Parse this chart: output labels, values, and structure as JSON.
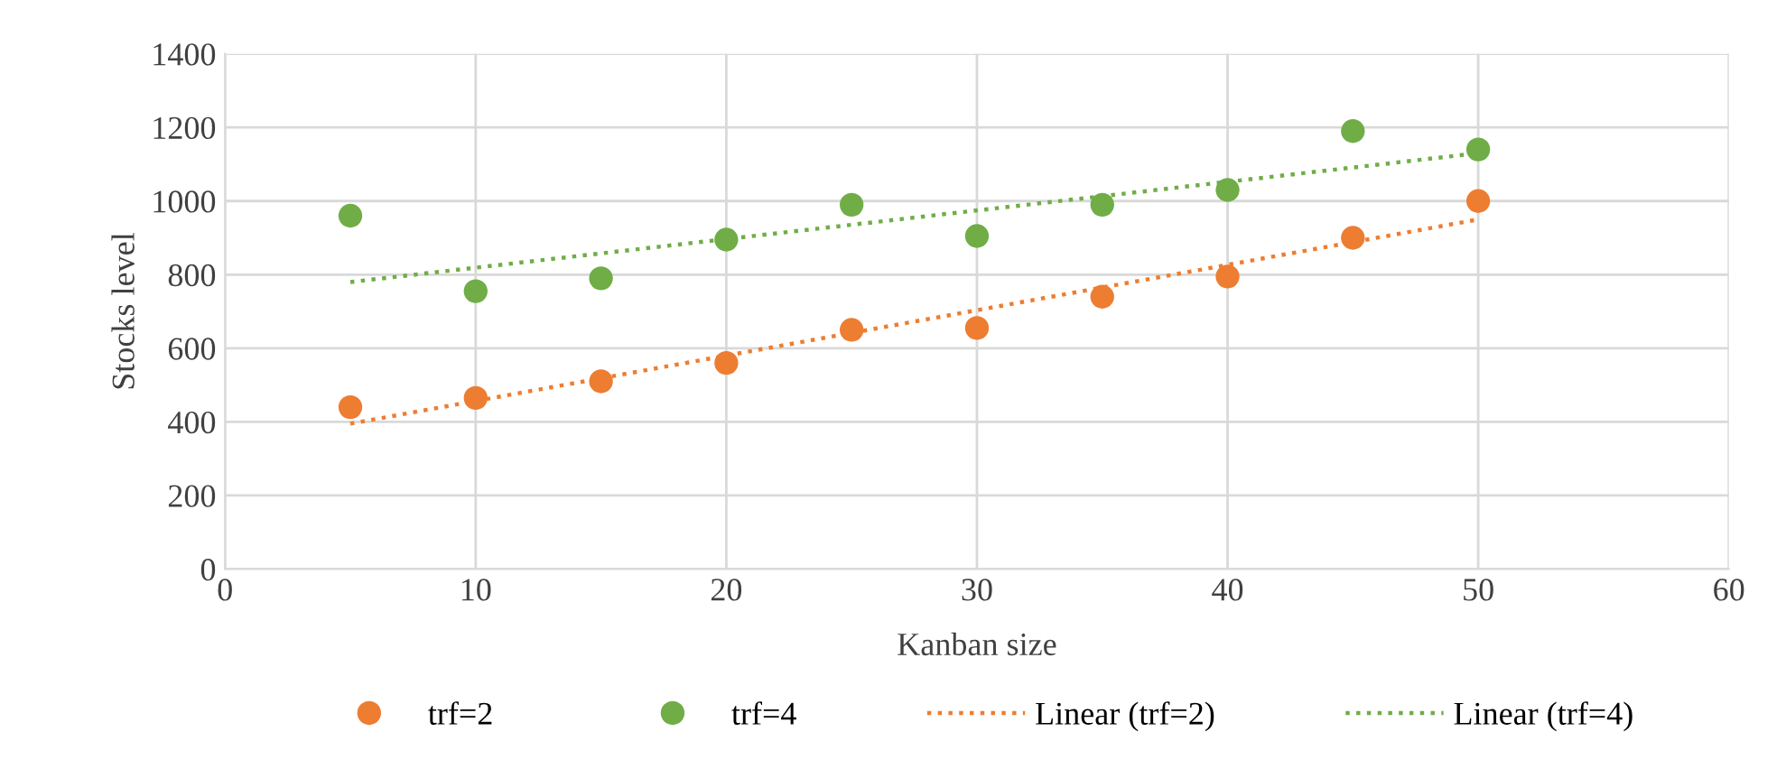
{
  "chart_data": {
    "type": "scatter",
    "xlabel": "Kanban size",
    "ylabel": "Stocks level",
    "xlim": [
      0,
      60
    ],
    "xticks": [
      0,
      10,
      20,
      30,
      40,
      50,
      60
    ],
    "ylim": [
      0,
      1400
    ],
    "yticks": [
      0,
      200,
      400,
      600,
      800,
      1000,
      1200,
      1400
    ],
    "grid": true,
    "legend": "bottom",
    "series": [
      {
        "name": "trf=2",
        "marker": "circle",
        "color": "#ed7d31",
        "x": [
          5,
          10,
          15,
          20,
          25,
          30,
          35,
          40,
          45,
          50
        ],
        "values": [
          440,
          465,
          510,
          560,
          650,
          655,
          740,
          795,
          900,
          1000
        ]
      },
      {
        "name": "trf=4",
        "marker": "circle",
        "color": "#70ad47",
        "x": [
          5,
          10,
          15,
          20,
          25,
          30,
          35,
          40,
          45,
          50
        ],
        "values": [
          960,
          755,
          790,
          895,
          990,
          905,
          990,
          1030,
          1190,
          1140
        ]
      },
      {
        "name": "Linear (trf=2)",
        "type": "line",
        "line_style": "dotted",
        "color": "#ed7d31",
        "x": [
          5,
          50
        ],
        "values": [
          395,
          950
        ]
      },
      {
        "name": "Linear (trf=4)",
        "type": "line",
        "line_style": "dotted",
        "color": "#70ad47",
        "x": [
          5,
          50
        ],
        "values": [
          780,
          1130
        ]
      }
    ]
  }
}
